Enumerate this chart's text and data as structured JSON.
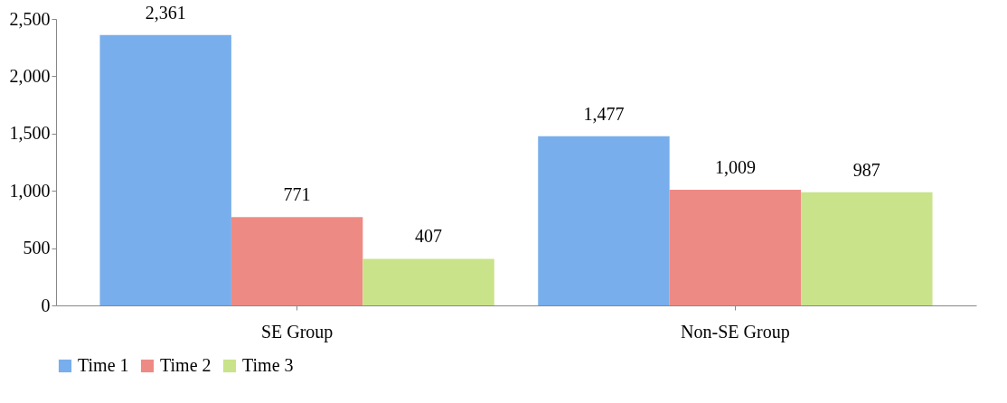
{
  "chart_data": {
    "type": "bar",
    "categories": [
      "SE Group",
      "Non-SE Group"
    ],
    "series": [
      {
        "name": "Time 1",
        "color": "#78aeec",
        "values": [
          2361,
          1477
        ],
        "value_labels": [
          "2,361",
          "1,477"
        ]
      },
      {
        "name": "Time 2",
        "color": "#ee8a84",
        "values": [
          771,
          1009
        ],
        "value_labels": [
          "771",
          "1,009"
        ]
      },
      {
        "name": "Time 3",
        "color": "#c9e38a",
        "values": [
          407,
          987
        ],
        "value_labels": [
          "407",
          "987"
        ]
      }
    ],
    "ylim": [
      0,
      2500
    ],
    "yticks": [
      0,
      {
        "value": 500,
        "label": "500"
      },
      {
        "value": 1000,
        "label": "1,000"
      },
      {
        "value": 1500,
        "label": "1,500"
      },
      {
        "value": 2000,
        "label": "2,000"
      },
      {
        "value": 2500,
        "label": "2,500"
      }
    ],
    "grid": false,
    "legend": "bottom"
  }
}
